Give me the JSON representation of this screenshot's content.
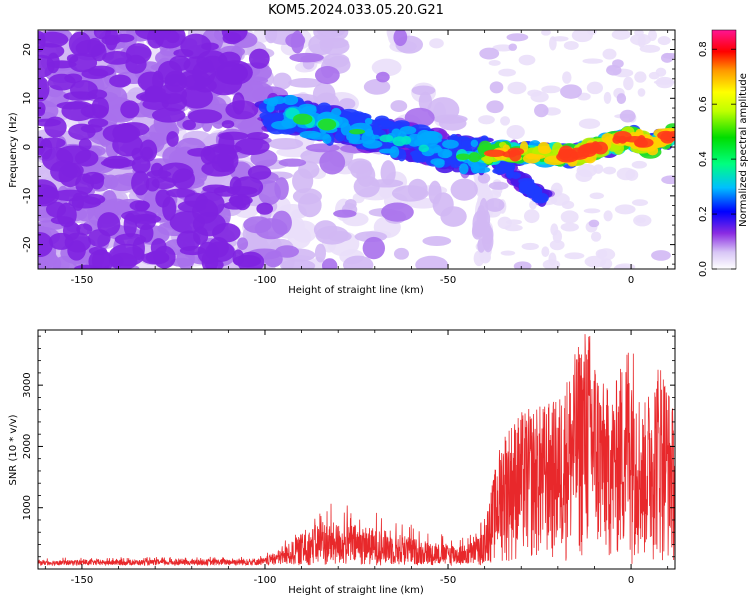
{
  "title": "KOM5.2024.033.05.20.G21",
  "chart_data": [
    {
      "type": "heatmap",
      "xlabel": "Height of straight line (km)",
      "ylabel": "Frequency (Hz)",
      "xlim": [
        -162,
        12
      ],
      "ylim": [
        -25,
        24
      ],
      "xticks": [
        -150,
        -100,
        -50,
        0
      ],
      "yticks": [
        -20,
        -10,
        0,
        10,
        20
      ],
      "colorbar": {
        "label": "Normalized spectral amplitude",
        "range": [
          0,
          0.87
        ],
        "ticks": [
          0.0,
          0.2,
          0.4,
          0.6,
          0.8
        ]
      },
      "ridge": [
        {
          "x": -95,
          "y": 7
        },
        {
          "x": -85,
          "y": 5
        },
        {
          "x": -75,
          "y": 3.5
        },
        {
          "x": -65,
          "y": 2
        },
        {
          "x": -55,
          "y": 0
        },
        {
          "x": -45,
          "y": -2
        },
        {
          "x": -35,
          "y": -1
        },
        {
          "x": -25,
          "y": -1.5
        },
        {
          "x": -15,
          "y": -1.5
        },
        {
          "x": -5,
          "y": 1
        },
        {
          "x": 0,
          "y": 2
        },
        {
          "x": 5,
          "y": 0.5
        },
        {
          "x": 12,
          "y": 2.5
        }
      ],
      "branch": [
        {
          "x": -35,
          "y": -4
        },
        {
          "x": -30,
          "y": -7
        },
        {
          "x": -25,
          "y": -10
        }
      ]
    },
    {
      "type": "line",
      "xlabel": "Height of straight line (km)",
      "ylabel": "SNR (10 * v/v)",
      "xlim": [
        -162,
        12
      ],
      "ylim": [
        0,
        3900
      ],
      "xticks": [
        -150,
        -100,
        -50,
        0
      ],
      "yticks": [
        1000,
        2000,
        3000
      ],
      "envelope": [
        {
          "x": -162,
          "y": 160
        },
        {
          "x": -120,
          "y": 170
        },
        {
          "x": -100,
          "y": 200
        },
        {
          "x": -95,
          "y": 400
        },
        {
          "x": -85,
          "y": 900
        },
        {
          "x": -75,
          "y": 850
        },
        {
          "x": -65,
          "y": 700
        },
        {
          "x": -55,
          "y": 500
        },
        {
          "x": -45,
          "y": 450
        },
        {
          "x": -40,
          "y": 700
        },
        {
          "x": -35,
          "y": 2200
        },
        {
          "x": -30,
          "y": 2500
        },
        {
          "x": -25,
          "y": 2600
        },
        {
          "x": -20,
          "y": 2700
        },
        {
          "x": -15,
          "y": 3500
        },
        {
          "x": -12,
          "y": 4000
        },
        {
          "x": -8,
          "y": 3000
        },
        {
          "x": -5,
          "y": 2800
        },
        {
          "x": 0,
          "y": 3900
        },
        {
          "x": 3,
          "y": 2500
        },
        {
          "x": 6,
          "y": 3100
        },
        {
          "x": 8,
          "y": 3450
        },
        {
          "x": 10,
          "y": 3000
        },
        {
          "x": 12,
          "y": 2400
        }
      ]
    }
  ]
}
